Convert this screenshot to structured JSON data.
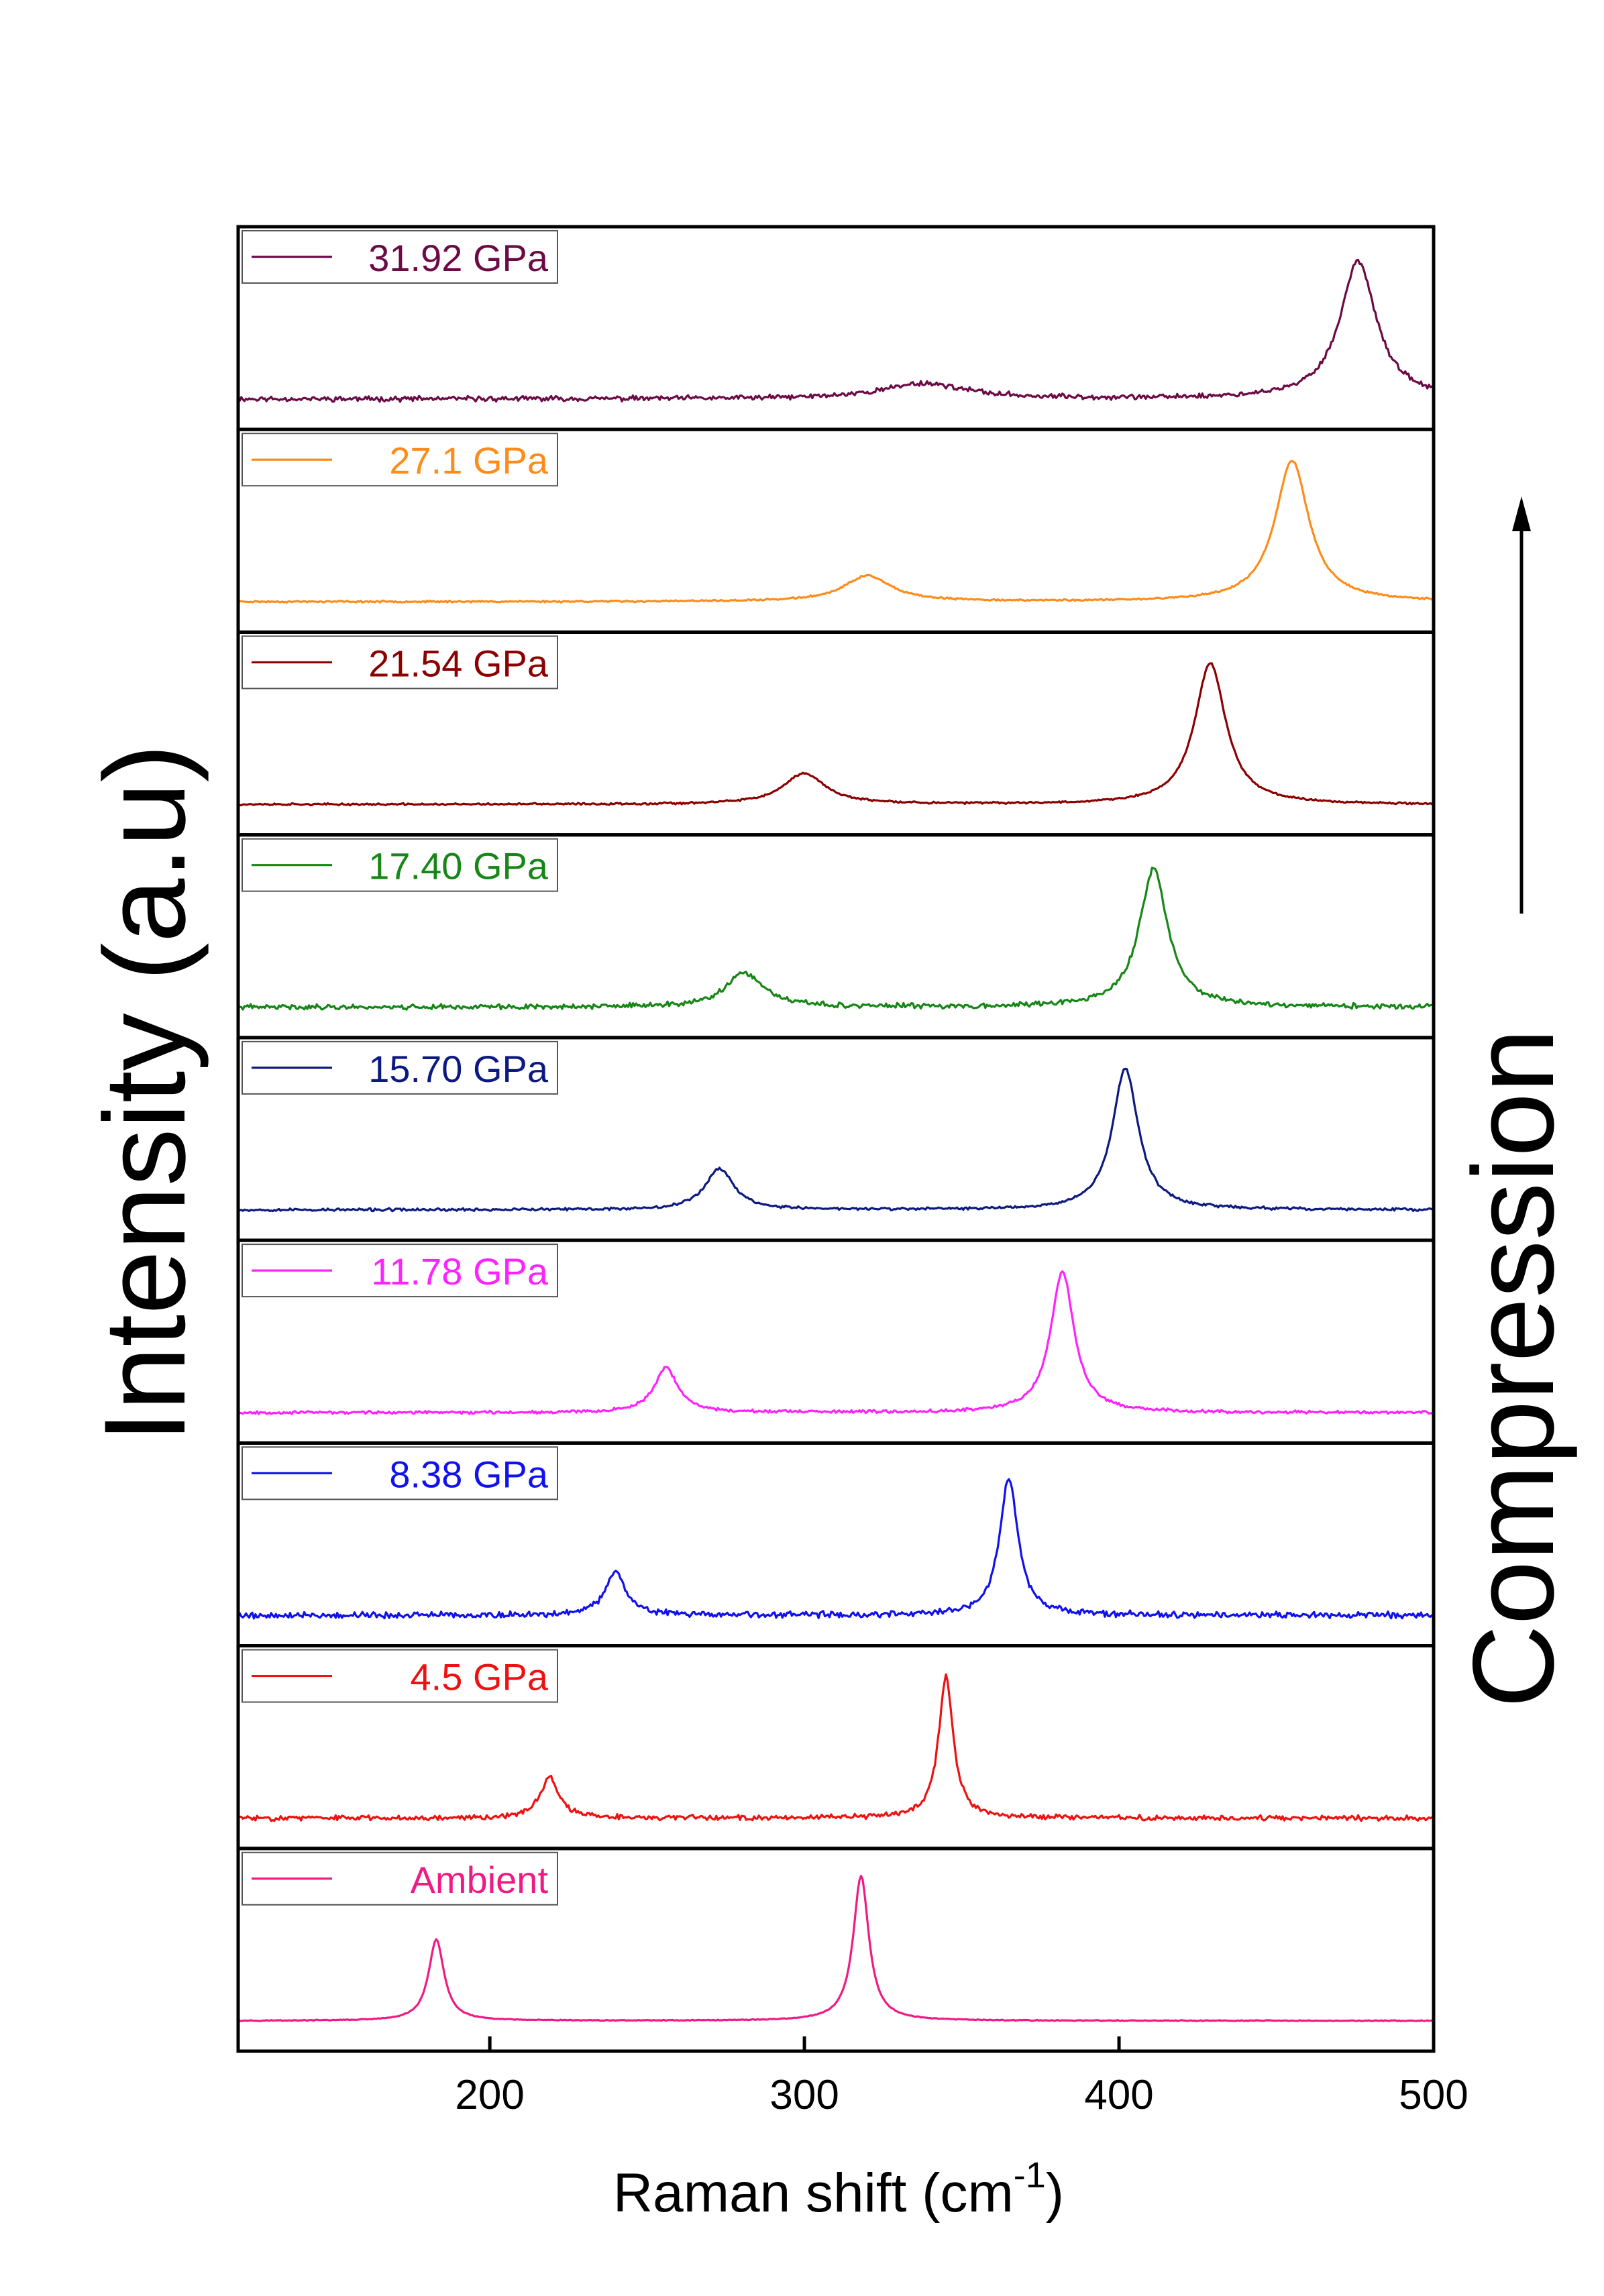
{
  "chart_data": {
    "type": "line",
    "xlabel": "Raman shift (cm",
    "xlabel_sup": "-1",
    "xlabel_end": ")",
    "ylabel": "Intensity (a.u)",
    "annotation": "Compression",
    "xlim": [
      120,
      500
    ],
    "xticks": [
      200,
      300,
      400,
      500
    ],
    "xtick_labels": [
      "200",
      "300",
      "400",
      "500"
    ],
    "panels": [
      {
        "name": "31.92 GPa",
        "color": "#6b0a45",
        "noise": 0.018,
        "seed": 11,
        "peaks": [
          {
            "x": 338,
            "h": 0.09,
            "w": 16
          },
          {
            "x": 476,
            "h": 0.8,
            "w": 7
          }
        ]
      },
      {
        "name": "27.1 GPa",
        "color": "#ff8c1a",
        "noise": 0.006,
        "seed": 23,
        "peaks": [
          {
            "x": 320,
            "h": 0.15,
            "w": 9
          },
          {
            "x": 455,
            "h": 0.82,
            "w": 6.5
          }
        ]
      },
      {
        "name": "21.54 GPa",
        "color": "#8b0000",
        "noise": 0.007,
        "seed": 37,
        "peaks": [
          {
            "x": 300,
            "h": 0.18,
            "w": 8
          },
          {
            "x": 429,
            "h": 0.82,
            "w": 6
          }
        ]
      },
      {
        "name": "17.40 GPa",
        "color": "#168716",
        "noise": 0.018,
        "seed": 41,
        "peaks": [
          {
            "x": 281,
            "h": 0.2,
            "w": 7
          },
          {
            "x": 411,
            "h": 0.8,
            "w": 5.5
          }
        ]
      },
      {
        "name": "15.70 GPa",
        "color": "#0c1a80",
        "noise": 0.01,
        "seed": 53,
        "peaks": [
          {
            "x": 273,
            "h": 0.24,
            "w": 5.5
          },
          {
            "x": 402,
            "h": 0.82,
            "w": 5
          }
        ]
      },
      {
        "name": "11.78 GPa",
        "color": "#ff22ff",
        "noise": 0.01,
        "seed": 67,
        "peaks": [
          {
            "x": 256,
            "h": 0.26,
            "w": 4.5
          },
          {
            "x": 382,
            "h": 0.82,
            "w": 4.5
          }
        ]
      },
      {
        "name": "8.38 GPa",
        "color": "#1111ee",
        "noise": 0.022,
        "seed": 79,
        "peaks": [
          {
            "x": 240,
            "h": 0.25,
            "w": 4
          },
          {
            "x": 365,
            "h": 0.8,
            "w": 3.5
          }
        ]
      },
      {
        "name": "4.5 GPa",
        "color": "#ee1111",
        "noise": 0.018,
        "seed": 83,
        "peaks": [
          {
            "x": 219,
            "h": 0.24,
            "w": 3.5
          },
          {
            "x": 345,
            "h": 0.82,
            "w": 2.8
          }
        ]
      },
      {
        "name": "Ambient",
        "color": "#ef1a84",
        "noise": 0.003,
        "seed": 97,
        "peaks": [
          {
            "x": 183,
            "h": 0.47,
            "w": 3
          },
          {
            "x": 318,
            "h": 0.84,
            "w": 3
          }
        ]
      }
    ]
  }
}
